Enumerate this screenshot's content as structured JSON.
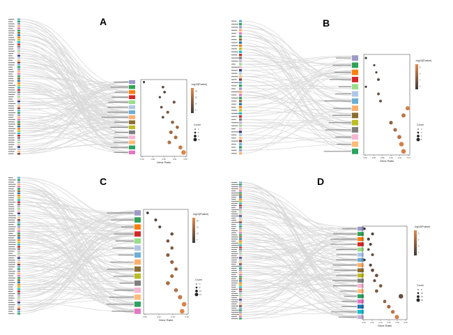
{
  "figure": {
    "panels": [
      {
        "letter": "A",
        "xlabel": "Gene Ratio",
        "color_title": "-log10(Pvalue)",
        "size_title": "Count"
      },
      {
        "letter": "B",
        "xlabel": "Gene Ratio",
        "color_title": "-log10(Pvalue)",
        "size_title": "Count"
      },
      {
        "letter": "C",
        "xlabel": "Gene Ratio",
        "color_title": "-log10(Pvalue)",
        "size_title": "Count"
      },
      {
        "letter": "D",
        "xlabel": "Gene Ratio",
        "color_title": "-log10(Pvalue)",
        "size_title": "Count"
      }
    ]
  },
  "colors": {
    "low": "#3a3a3a",
    "high": "#e8894a",
    "flow": "#d9d9d9",
    "palette": [
      "#6baed6",
      "#2ca25f",
      "#9e9ac8",
      "#fdae6b",
      "#e377c2",
      "#31a354",
      "#8c6d31",
      "#1f77b4",
      "#ff7f0e",
      "#bcbd22",
      "#17becf",
      "#d62728",
      "#7f7f7f",
      "#c5b0d5",
      "#98df8a",
      "#f7b6d2",
      "#393b79",
      "#aec7e8",
      "#ffbb78",
      "#843c39"
    ]
  },
  "chart_data": [
    {
      "type": "scatter",
      "panel": "A",
      "xlabel": "Gene Ratio",
      "xticks": [
        "0.10",
        "0.20",
        "0.25",
        "0.30",
        "0.35"
      ],
      "xlim": [
        0.08,
        0.37
      ],
      "color_ticks": [
        "5",
        "10",
        "15",
        "20"
      ],
      "color_range": [
        2,
        22
      ],
      "size_ticks": [
        "3",
        "5",
        "8",
        "10"
      ],
      "genes": 60,
      "points": [
        {
          "x": 0.1,
          "c": 3,
          "s": 3
        },
        {
          "x": 0.22,
          "c": 6,
          "s": 4
        },
        {
          "x": 0.23,
          "c": 5,
          "s": 4
        },
        {
          "x": 0.2,
          "c": 4,
          "s": 3
        },
        {
          "x": 0.29,
          "c": 8,
          "s": 5
        },
        {
          "x": 0.21,
          "c": 7,
          "s": 4
        },
        {
          "x": 0.25,
          "c": 9,
          "s": 5
        },
        {
          "x": 0.22,
          "c": 6,
          "s": 4
        },
        {
          "x": 0.28,
          "c": 12,
          "s": 6
        },
        {
          "x": 0.31,
          "c": 13,
          "s": 6
        },
        {
          "x": 0.27,
          "c": 14,
          "s": 7
        },
        {
          "x": 0.3,
          "c": 15,
          "s": 7
        },
        {
          "x": 0.26,
          "c": 16,
          "s": 7
        },
        {
          "x": 0.33,
          "c": 18,
          "s": 8
        },
        {
          "x": 0.35,
          "c": 21,
          "s": 10
        }
      ]
    },
    {
      "type": "scatter",
      "panel": "B",
      "xlabel": "Gene Ratio",
      "xticks": [
        "0.04",
        "0.06",
        "0.08",
        "0.10",
        "0.12",
        "0.14"
      ],
      "xlim": [
        0.035,
        0.145
      ],
      "color_ticks": [
        "2",
        "4",
        "6",
        "8"
      ],
      "color_range": [
        1,
        9
      ],
      "size_ticks": [
        "2",
        "4",
        "6",
        "8"
      ],
      "genes": 44,
      "points": [
        {
          "x": 0.04,
          "c": 1,
          "s": 2
        },
        {
          "x": 0.06,
          "c": 2,
          "s": 2
        },
        {
          "x": 0.065,
          "c": 2,
          "s": 2
        },
        {
          "x": 0.07,
          "c": 2,
          "s": 3
        },
        {
          "x": 0.04,
          "c": 1,
          "s": 2
        },
        {
          "x": 0.07,
          "c": 3,
          "s": 3
        },
        {
          "x": 0.075,
          "c": 3,
          "s": 3
        },
        {
          "x": 0.14,
          "c": 8,
          "s": 6
        },
        {
          "x": 0.13,
          "c": 7,
          "s": 6
        },
        {
          "x": 0.1,
          "c": 5,
          "s": 5
        },
        {
          "x": 0.11,
          "c": 6,
          "s": 5
        },
        {
          "x": 0.12,
          "c": 7,
          "s": 6
        },
        {
          "x": 0.125,
          "c": 8,
          "s": 7
        },
        {
          "x": 0.13,
          "c": 8,
          "s": 7
        }
      ]
    },
    {
      "type": "scatter",
      "panel": "C",
      "xlabel": "Gene Ratio",
      "xticks": [
        "0.09",
        "0.12",
        "0.15",
        "0.18"
      ],
      "xlim": [
        0.08,
        0.19
      ],
      "color_ticks": [
        "5",
        "10",
        "15",
        "20"
      ],
      "color_range": [
        2,
        22
      ],
      "size_ticks": [
        "5",
        "8",
        "10",
        "12"
      ],
      "genes": 62,
      "points": [
        {
          "x": 0.09,
          "c": 3,
          "s": 4
        },
        {
          "x": 0.11,
          "c": 5,
          "s": 5
        },
        {
          "x": 0.12,
          "c": 6,
          "s": 5
        },
        {
          "x": 0.15,
          "c": 8,
          "s": 6
        },
        {
          "x": 0.14,
          "c": 9,
          "s": 6
        },
        {
          "x": 0.15,
          "c": 10,
          "s": 6
        },
        {
          "x": 0.14,
          "c": 11,
          "s": 7
        },
        {
          "x": 0.15,
          "c": 12,
          "s": 7
        },
        {
          "x": 0.16,
          "c": 13,
          "s": 7
        },
        {
          "x": 0.15,
          "c": 14,
          "s": 7
        },
        {
          "x": 0.14,
          "c": 15,
          "s": 8
        },
        {
          "x": 0.16,
          "c": 16,
          "s": 8
        },
        {
          "x": 0.17,
          "c": 18,
          "s": 9
        },
        {
          "x": 0.18,
          "c": 20,
          "s": 10
        },
        {
          "x": 0.175,
          "c": 21,
          "s": 10
        }
      ]
    },
    {
      "type": "scatter",
      "panel": "D",
      "xlabel": "Gene Ratio",
      "xticks": [
        "0.10",
        "0.12",
        "0.14",
        "0.16",
        "0.18",
        "0.20"
      ],
      "xlim": [
        0.095,
        0.205
      ],
      "color_ticks": [
        "2",
        "4",
        "6",
        "8"
      ],
      "color_range": [
        1,
        9
      ],
      "size_ticks": [
        "5",
        "10",
        "15",
        "20"
      ],
      "genes": 66,
      "points": [
        {
          "x": 0.1,
          "c": 1,
          "s": 3
        },
        {
          "x": 0.12,
          "c": 2,
          "s": 4
        },
        {
          "x": 0.11,
          "c": 2,
          "s": 4
        },
        {
          "x": 0.115,
          "c": 2,
          "s": 4
        },
        {
          "x": 0.11,
          "c": 2,
          "s": 3
        },
        {
          "x": 0.12,
          "c": 3,
          "s": 4
        },
        {
          "x": 0.1,
          "c": 1,
          "s": 3
        },
        {
          "x": 0.115,
          "c": 2,
          "s": 4
        },
        {
          "x": 0.12,
          "c": 3,
          "s": 5
        },
        {
          "x": 0.13,
          "c": 3,
          "s": 5
        },
        {
          "x": 0.125,
          "c": 3,
          "s": 4
        },
        {
          "x": 0.14,
          "c": 4,
          "s": 5
        },
        {
          "x": 0.13,
          "c": 4,
          "s": 5
        },
        {
          "x": 0.19,
          "c": 3,
          "s": 8
        },
        {
          "x": 0.15,
          "c": 5,
          "s": 5
        },
        {
          "x": 0.16,
          "c": 6,
          "s": 6
        },
        {
          "x": 0.17,
          "c": 7,
          "s": 6
        },
        {
          "x": 0.18,
          "c": 8,
          "s": 7
        }
      ]
    }
  ]
}
